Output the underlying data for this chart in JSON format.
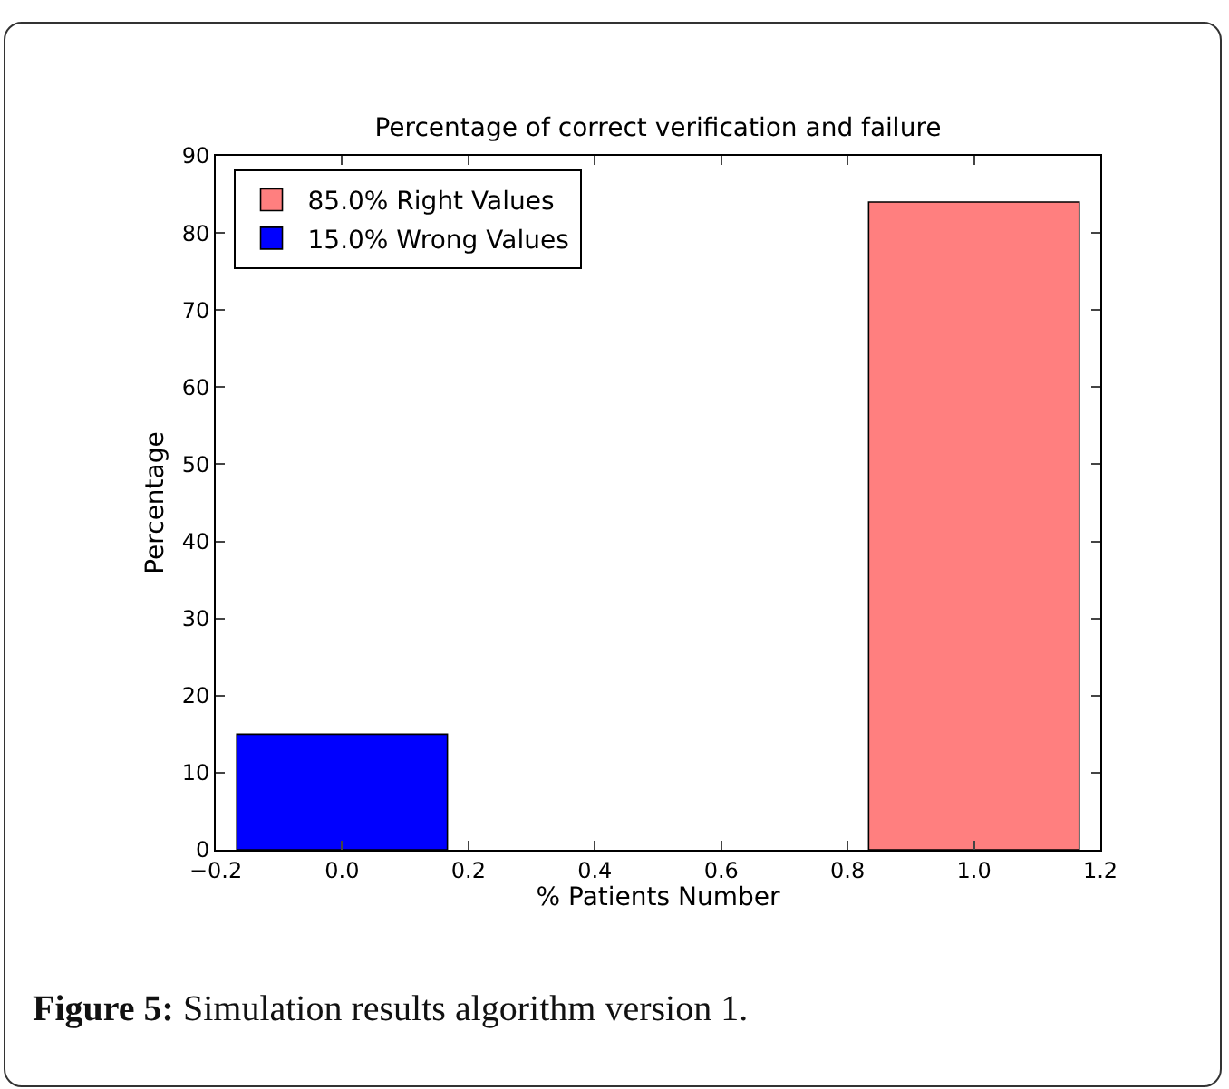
{
  "chart_data": {
    "type": "bar",
    "title": "Percentage of correct verification and failure",
    "xlabel": "% Patients Number",
    "ylabel": "Percentage",
    "series": [
      {
        "name": "85.0% Right Values",
        "color": "#ff7f7f",
        "x": [
          1
        ],
        "values": [
          84
        ]
      },
      {
        "name": "15.0% Wrong Values",
        "color": "#0000ff",
        "x": [
          0
        ],
        "values": [
          15
        ]
      }
    ],
    "xlim": [
      -0.2,
      1.2
    ],
    "xticks": [
      {
        "value": -0.2,
        "label": "−0.2"
      },
      {
        "value": 0,
        "label": "0.0"
      },
      {
        "value": 0.2,
        "label": "0.2"
      },
      {
        "value": 0.4,
        "label": "0.4"
      },
      {
        "value": 0.6,
        "label": "0.6"
      },
      {
        "value": 0.8,
        "label": "0.8"
      },
      {
        "value": 1,
        "label": "1.0"
      },
      {
        "value": 1.2,
        "label": "1.2"
      }
    ],
    "ylim": [
      0,
      90
    ],
    "yticks": [
      0,
      10,
      20,
      30,
      40,
      50,
      60,
      70,
      80,
      90
    ],
    "legend": "top left",
    "grid": false,
    "annotations": [
      "Figure 5: Simulation results algorithm version 1."
    ]
  }
}
